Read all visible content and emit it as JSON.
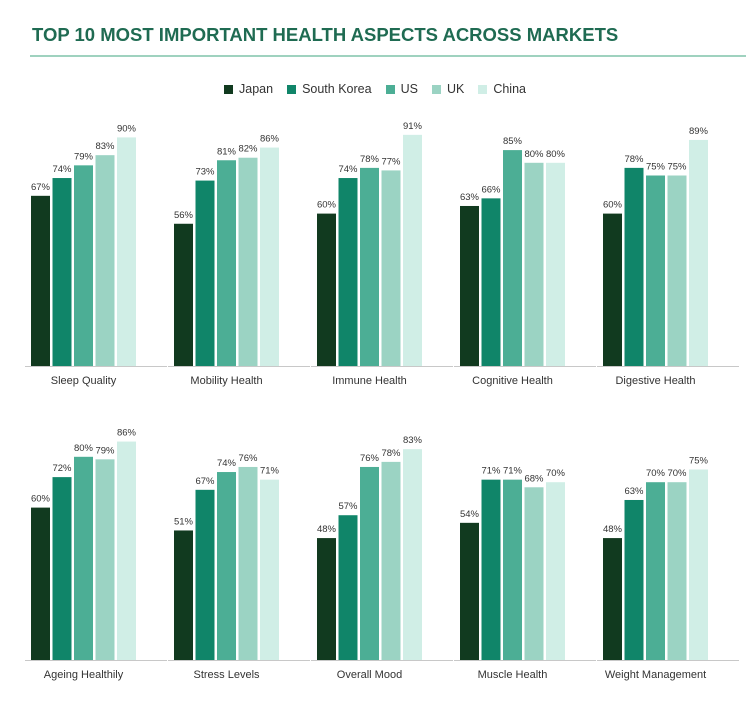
{
  "title": "TOP 10 MOST IMPORTANT HEALTH ASPECTS ACROSS MARKETS",
  "chart_data": {
    "type": "bar",
    "legend_position": "top",
    "value_suffix": "%",
    "series": [
      {
        "name": "Japan",
        "color": "#113a1f"
      },
      {
        "name": "South Korea",
        "color": "#108569"
      },
      {
        "name": "US",
        "color": "#4cae95"
      },
      {
        "name": "UK",
        "color": "#9bd3c3"
      },
      {
        "name": "China",
        "color": "#d0eee6"
      }
    ],
    "groups": [
      {
        "category": "Sleep Quality",
        "values": [
          67,
          74,
          79,
          83,
          90
        ]
      },
      {
        "category": "Mobility Health",
        "values": [
          56,
          73,
          81,
          82,
          86
        ]
      },
      {
        "category": "Immune Health",
        "values": [
          60,
          74,
          78,
          77,
          91
        ]
      },
      {
        "category": "Cognitive Health",
        "values": [
          63,
          66,
          85,
          80,
          80
        ]
      },
      {
        "category": "Digestive Health",
        "values": [
          60,
          78,
          75,
          75,
          89
        ]
      },
      {
        "category": "Ageing Healthily",
        "values": [
          60,
          72,
          80,
          79,
          86
        ]
      },
      {
        "category": "Stress Levels",
        "values": [
          51,
          67,
          74,
          76,
          71
        ]
      },
      {
        "category": "Overall Mood",
        "values": [
          48,
          57,
          76,
          78,
          83
        ]
      },
      {
        "category": "Muscle Health",
        "values": [
          54,
          71,
          71,
          68,
          70
        ]
      },
      {
        "category": "Weight Management",
        "values": [
          48,
          63,
          70,
          70,
          75
        ]
      }
    ]
  }
}
